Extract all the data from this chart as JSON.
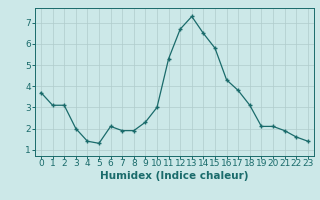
{
  "xlabel": "Humidex (Indice chaleur)",
  "x": [
    0,
    1,
    2,
    3,
    4,
    5,
    6,
    7,
    8,
    9,
    10,
    11,
    12,
    13,
    14,
    15,
    16,
    17,
    18,
    19,
    20,
    21,
    22,
    23
  ],
  "y": [
    3.7,
    3.1,
    3.1,
    2.0,
    1.4,
    1.3,
    2.1,
    1.9,
    1.9,
    2.3,
    3.0,
    5.3,
    6.7,
    7.3,
    6.5,
    5.8,
    4.3,
    3.8,
    3.1,
    2.1,
    2.1,
    1.9,
    1.6,
    1.4
  ],
  "line_color": "#1a6b6b",
  "marker": "+",
  "bg_color": "#cce8e8",
  "grid_color": "#b0cccc",
  "ylim": [
    0.7,
    7.7
  ],
  "xlim": [
    -0.5,
    23.5
  ],
  "yticks": [
    1,
    2,
    3,
    4,
    5,
    6,
    7
  ],
  "xticks": [
    0,
    1,
    2,
    3,
    4,
    5,
    6,
    7,
    8,
    9,
    10,
    11,
    12,
    13,
    14,
    15,
    16,
    17,
    18,
    19,
    20,
    21,
    22,
    23
  ],
  "tick_fontsize": 6.5,
  "xlabel_fontsize": 7.5,
  "spine_color": "#1a6b6b"
}
